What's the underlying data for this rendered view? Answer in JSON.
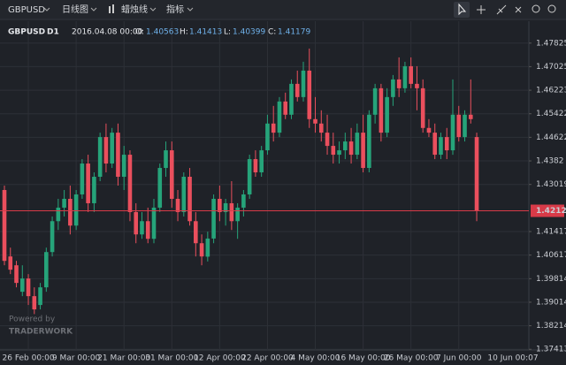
{
  "toolbar": {
    "symbol": "GBPUSD",
    "period": "日线图",
    "style": "蜡烛线",
    "indicators": "指标"
  },
  "header": {
    "symbol": "GBPUSD",
    "timeframe": "D1",
    "time": "2016.04.08 00:00",
    "open_label": "O:",
    "high_label": "H:",
    "low_label": "L:",
    "close_label": "C:"
  },
  "watermark": {
    "line1": "Powered by",
    "line2": "TRADERWORK"
  },
  "chart_data": {
    "type": "candlestick",
    "categories": [
      null,
      null,
      null,
      null,
      "26 Feb 00:00",
      null,
      null,
      null,
      null,
      null,
      null,
      null,
      "9 Mar 00:00",
      null,
      null,
      null,
      null,
      null,
      null,
      null,
      "21 Mar 00:00",
      null,
      null,
      null,
      null,
      null,
      null,
      null,
      "31 Mar 00:00",
      null,
      null,
      null,
      null,
      null,
      null,
      null,
      "12 Apr 00:00",
      null,
      null,
      null,
      null,
      null,
      null,
      null,
      "22 Apr 00:00",
      null,
      null,
      null,
      null,
      null,
      null,
      null,
      "4 May 00:00",
      null,
      null,
      null,
      null,
      null,
      null,
      null,
      "16 May 00:00",
      null,
      null,
      null,
      null,
      null,
      null,
      null,
      "26 May 00:00",
      null,
      null,
      null,
      null,
      null,
      null,
      null,
      "7 Jun 00:00",
      null,
      null,
      null
    ],
    "cursor_time_label": "10 Jun 00:07",
    "open": [
      1.4283,
      1.4057,
      1.4027,
      1.3937,
      1.3982,
      1.3922,
      1.3892,
      1.3952,
      1.4072,
      1.4177,
      1.4223,
      1.4253,
      1.4162,
      1.4268,
      1.4373,
      1.4238,
      1.4328,
      1.4463,
      1.4373,
      1.4478,
      1.4328,
      1.4403,
      1.4208,
      1.4132,
      1.4177,
      1.4117,
      1.4223,
      1.4358,
      1.4418,
      1.4253,
      1.4208,
      1.4328,
      1.4177,
      1.4102,
      1.40563,
      1.4118,
      1.4253,
      1.4208,
      1.4238,
      1.4177,
      1.4223,
      1.4268,
      1.4388,
      1.4343,
      1.4418,
      1.4509,
      1.4478,
      1.4584,
      1.4539,
      1.4644,
      1.4599,
      1.4689,
      1.4524,
      1.4509,
      1.4478,
      1.4433,
      1.4403,
      1.4418,
      1.4448,
      1.4403,
      1.4478,
      1.4358,
      1.4539,
      1.4629,
      1.4478,
      1.4599,
      1.4659,
      1.4629,
      1.4704,
      1.4644,
      1.4629,
      1.4494,
      1.4478,
      1.4403,
      1.4463,
      1.4418,
      1.4539,
      1.4463,
      1.4539,
      1.4463
    ],
    "high": [
      1.4298,
      1.4087,
      1.4042,
      1.4027,
      1.3997,
      1.3952,
      1.3967,
      1.4087,
      1.4193,
      1.4253,
      1.4283,
      1.4298,
      1.4283,
      1.4388,
      1.4403,
      1.4343,
      1.4478,
      1.4509,
      1.4494,
      1.4509,
      1.4433,
      1.4418,
      1.4238,
      1.4208,
      1.4223,
      1.4253,
      1.4373,
      1.4448,
      1.4448,
      1.4283,
      1.4343,
      1.4358,
      1.4208,
      1.4132,
      1.41413,
      1.4268,
      1.4298,
      1.4253,
      1.4313,
      1.4238,
      1.4283,
      1.4403,
      1.4418,
      1.4433,
      1.4539,
      1.4569,
      1.4599,
      1.4614,
      1.4659,
      1.4689,
      1.4719,
      1.4764,
      1.4599,
      1.4554,
      1.4539,
      1.4478,
      1.4448,
      1.4478,
      1.4494,
      1.4509,
      1.4539,
      1.4554,
      1.4644,
      1.4644,
      1.4629,
      1.4674,
      1.4734,
      1.4719,
      1.4734,
      1.4704,
      1.4659,
      1.4524,
      1.4509,
      1.4478,
      1.4494,
      1.4659,
      1.4569,
      1.4554,
      1.4659,
      1.4478
    ],
    "low": [
      1.4027,
      1.3997,
      1.3952,
      1.3922,
      1.3892,
      1.3861,
      1.3877,
      1.3937,
      1.4057,
      1.4147,
      1.4193,
      1.4132,
      1.4147,
      1.4253,
      1.4208,
      1.4208,
      1.4313,
      1.4343,
      1.4358,
      1.4298,
      1.4283,
      1.4177,
      1.4102,
      1.4117,
      1.4102,
      1.4102,
      1.4208,
      1.4328,
      1.4223,
      1.4177,
      1.4193,
      1.4162,
      1.4057,
      1.4027,
      1.40399,
      1.4102,
      1.4177,
      1.4162,
      1.4147,
      1.4117,
      1.4193,
      1.4253,
      1.4328,
      1.4328,
      1.4403,
      1.4448,
      1.4463,
      1.4524,
      1.4524,
      1.4584,
      1.4584,
      1.4494,
      1.4478,
      1.4448,
      1.4403,
      1.4373,
      1.4373,
      1.4388,
      1.4373,
      1.4388,
      1.4343,
      1.4343,
      1.4509,
      1.4448,
      1.4463,
      1.4569,
      1.4599,
      1.4614,
      1.4629,
      1.4554,
      1.4478,
      1.4463,
      1.4388,
      1.4388,
      1.4388,
      1.4403,
      1.4448,
      1.4448,
      1.4509,
      1.4177
    ],
    "close": [
      1.4042,
      1.4012,
      1.3967,
      1.3982,
      1.3922,
      1.3877,
      1.3952,
      1.4072,
      1.4177,
      1.4223,
      1.4253,
      1.4162,
      1.4268,
      1.4373,
      1.4238,
      1.4328,
      1.4463,
      1.4373,
      1.4478,
      1.4328,
      1.4403,
      1.4208,
      1.4132,
      1.4177,
      1.4117,
      1.4223,
      1.4358,
      1.4418,
      1.4253,
      1.4208,
      1.4328,
      1.4177,
      1.4102,
      1.4057,
      1.41179,
      1.4253,
      1.4208,
      1.4238,
      1.4177,
      1.4223,
      1.4268,
      1.4388,
      1.4343,
      1.4418,
      1.4509,
      1.4478,
      1.4584,
      1.4539,
      1.4644,
      1.4599,
      1.4689,
      1.4524,
      1.4509,
      1.4478,
      1.4433,
      1.4403,
      1.4418,
      1.4448,
      1.4403,
      1.4478,
      1.4358,
      1.4539,
      1.4629,
      1.4478,
      1.4599,
      1.4659,
      1.4629,
      1.4704,
      1.4644,
      1.4629,
      1.4494,
      1.4478,
      1.4403,
      1.4463,
      1.4418,
      1.4539,
      1.4463,
      1.4539,
      1.4524,
      1.42123
    ],
    "up_color": "#26a47a",
    "down_color": "#ea4f5d",
    "price_line_color": "#d83a48",
    "ylim": [
      1.3739,
      1.4857
    ],
    "yticks": [
      1.47825,
      1.47025,
      1.46223,
      1.45422,
      1.44622,
      1.4382,
      1.43019,
      1.41417,
      1.40617,
      1.39814,
      1.39014,
      1.38214,
      1.37413
    ],
    "grid": true
  }
}
